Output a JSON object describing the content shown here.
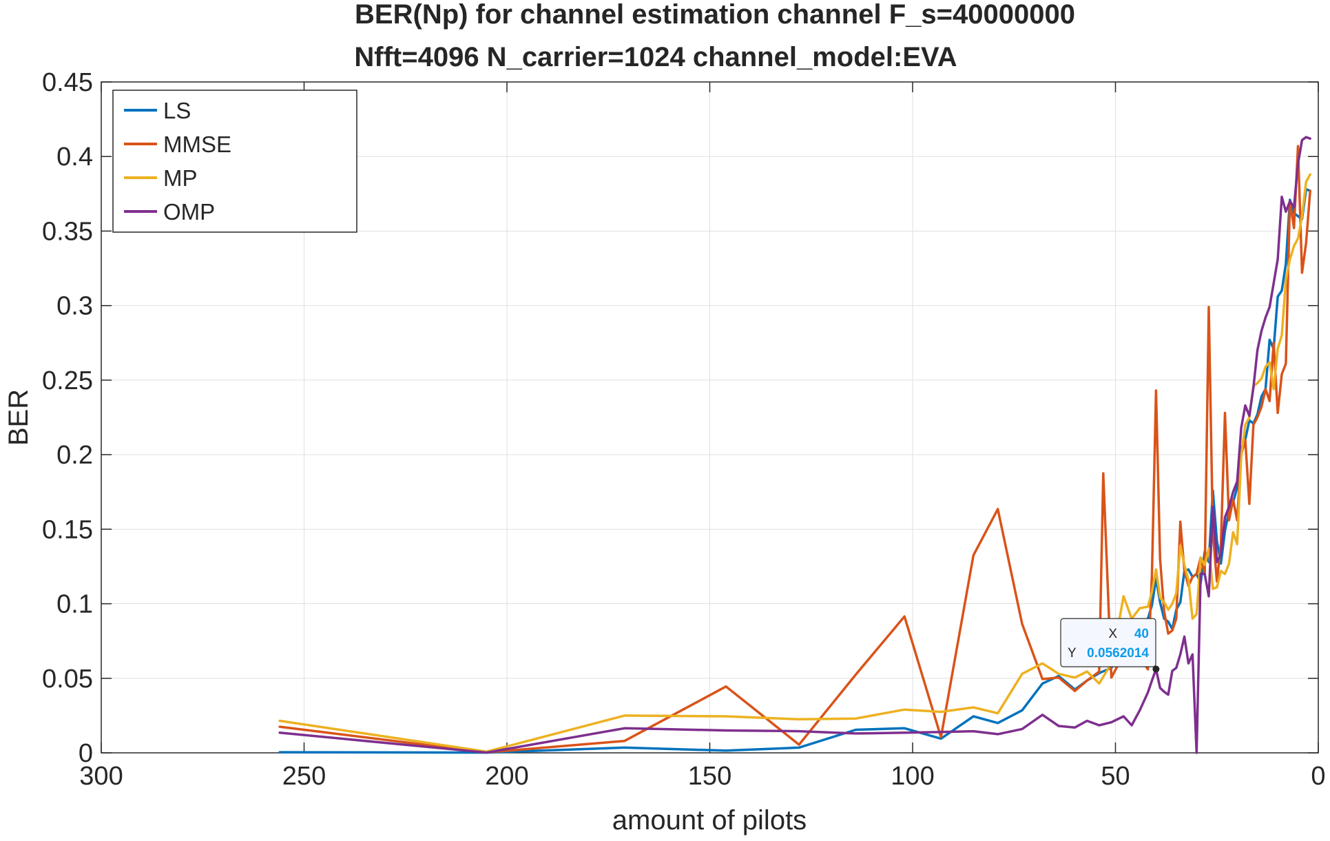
{
  "chart_data": {
    "type": "line",
    "title": "BER(Np) for channel estimation channel F_s=40000000",
    "subtitle": "Nfft=4096 N_carrier=1024 channel_model:EVA",
    "xlabel": "amount of pilots",
    "ylabel": "BER",
    "xlim": [
      300,
      0
    ],
    "ylim": [
      0,
      0.45
    ],
    "x_reversed": true,
    "grid": true,
    "legend_position": "top-left",
    "x_ticks": [
      "300",
      "250",
      "200",
      "150",
      "100",
      "50",
      "0"
    ],
    "y_ticks": [
      "0",
      "0.05",
      "0.1",
      "0.15",
      "0.2",
      "0.25",
      "0.3",
      "0.35",
      "0.4",
      "0.45"
    ],
    "series": [
      {
        "name": "LS",
        "color": "#0072BD",
        "points": [
          [
            256,
            0.0004
          ],
          [
            205,
            0.0002
          ],
          [
            171,
            0.0035
          ],
          [
            146,
            0.0015
          ],
          [
            128,
            0.0035
          ],
          [
            114,
            0.0155
          ],
          [
            102,
            0.0165
          ],
          [
            93,
            0.0095
          ],
          [
            85,
            0.0245
          ],
          [
            79,
            0.02
          ],
          [
            73,
            0.0285
          ],
          [
            68,
            0.0465
          ],
          [
            64,
            0.0515
          ],
          [
            60,
            0.0425
          ],
          [
            57,
            0.0485
          ],
          [
            54,
            0.0535
          ],
          [
            51,
            0.057
          ],
          [
            48,
            0.068
          ],
          [
            46,
            0.076
          ],
          [
            44,
            0.083
          ],
          [
            42,
            0.09
          ],
          [
            41,
            0.099
          ],
          [
            40,
            0.117
          ],
          [
            39,
            0.101
          ],
          [
            38,
            0.09
          ],
          [
            37,
            0.088
          ],
          [
            36,
            0.083
          ],
          [
            35,
            0.096
          ],
          [
            34,
            0.101
          ],
          [
            33,
            0.122
          ],
          [
            32,
            0.123
          ],
          [
            31,
            0.118
          ],
          [
            30,
            0.12
          ],
          [
            29,
            0.114
          ],
          [
            28,
            0.135
          ],
          [
            27,
            0.128
          ],
          [
            26,
            0.176
          ],
          [
            25,
            0.142
          ],
          [
            24,
            0.127
          ],
          [
            23,
            0.149
          ],
          [
            22,
            0.162
          ],
          [
            21,
            0.168
          ],
          [
            20,
            0.178
          ],
          [
            19,
            0.204
          ],
          [
            18,
            0.21
          ],
          [
            17,
            0.223
          ],
          [
            16,
            0.221
          ],
          [
            15,
            0.227
          ],
          [
            14,
            0.239
          ],
          [
            13,
            0.244
          ],
          [
            12,
            0.277
          ],
          [
            11,
            0.271
          ],
          [
            10,
            0.306
          ],
          [
            9,
            0.31
          ],
          [
            8,
            0.328
          ],
          [
            7,
            0.371
          ],
          [
            6,
            0.362
          ],
          [
            5,
            0.36
          ],
          [
            4,
            0.358
          ],
          [
            3,
            0.378
          ],
          [
            2,
            0.377
          ]
        ]
      },
      {
        "name": "MMSE",
        "color": "#D95319",
        "points": [
          [
            256,
            0.0175
          ],
          [
            205,
            0.0003
          ],
          [
            171,
            0.008
          ],
          [
            146,
            0.0445
          ],
          [
            128,
            0.0055
          ],
          [
            114,
            0.0525
          ],
          [
            102,
            0.0915
          ],
          [
            93,
            0.0105
          ],
          [
            85,
            0.1325
          ],
          [
            79,
            0.1635
          ],
          [
            73,
            0.0865
          ],
          [
            68,
            0.0495
          ],
          [
            64,
            0.0505
          ],
          [
            60,
            0.0415
          ],
          [
            57,
            0.0485
          ],
          [
            54,
            0.0545
          ],
          [
            53,
            0.1875
          ],
          [
            51,
            0.0505
          ],
          [
            48,
            0.066
          ],
          [
            46,
            0.07
          ],
          [
            44,
            0.064
          ],
          [
            42,
            0.056
          ],
          [
            41,
            0.12
          ],
          [
            40,
            0.243
          ],
          [
            39,
            0.13
          ],
          [
            38,
            0.095
          ],
          [
            37,
            0.08
          ],
          [
            36,
            0.082
          ],
          [
            35,
            0.09
          ],
          [
            34,
            0.155
          ],
          [
            33,
            0.122
          ],
          [
            32,
            0.112
          ],
          [
            31,
            0.118
          ],
          [
            30,
            0.12
          ],
          [
            29,
            0.131
          ],
          [
            28,
            0.12
          ],
          [
            27,
            0.299
          ],
          [
            26,
            0.148
          ],
          [
            25,
            0.115
          ],
          [
            24,
            0.14
          ],
          [
            23,
            0.228
          ],
          [
            22,
            0.156
          ],
          [
            21,
            0.17
          ],
          [
            20,
            0.156
          ],
          [
            19,
            0.2
          ],
          [
            18,
            0.21
          ],
          [
            17,
            0.167
          ],
          [
            16,
            0.22
          ],
          [
            15,
            0.225
          ],
          [
            14,
            0.232
          ],
          [
            13,
            0.244
          ],
          [
            12,
            0.236
          ],
          [
            11,
            0.275
          ],
          [
            10,
            0.228
          ],
          [
            9,
            0.254
          ],
          [
            8,
            0.261
          ],
          [
            7,
            0.37
          ],
          [
            6,
            0.352
          ],
          [
            5,
            0.407
          ],
          [
            4,
            0.322
          ],
          [
            3,
            0.342
          ],
          [
            2,
            0.377
          ]
        ]
      },
      {
        "name": "MP",
        "color": "#EDB120",
        "points": [
          [
            256,
            0.0215
          ],
          [
            205,
            0.0008
          ],
          [
            171,
            0.025
          ],
          [
            146,
            0.0245
          ],
          [
            128,
            0.0225
          ],
          [
            114,
            0.023
          ],
          [
            102,
            0.029
          ],
          [
            93,
            0.0275
          ],
          [
            85,
            0.0305
          ],
          [
            79,
            0.0265
          ],
          [
            73,
            0.053
          ],
          [
            68,
            0.06
          ],
          [
            64,
            0.053
          ],
          [
            60,
            0.0505
          ],
          [
            57,
            0.0545
          ],
          [
            54,
            0.0465
          ],
          [
            51,
            0.06
          ],
          [
            48,
            0.105
          ],
          [
            46,
            0.09
          ],
          [
            44,
            0.097
          ],
          [
            42,
            0.098
          ],
          [
            41,
            0.108
          ],
          [
            40,
            0.123
          ],
          [
            39,
            0.104
          ],
          [
            38,
            0.101
          ],
          [
            37,
            0.096
          ],
          [
            36,
            0.1
          ],
          [
            35,
            0.107
          ],
          [
            34,
            0.139
          ],
          [
            33,
            0.126
          ],
          [
            32,
            0.116
          ],
          [
            31,
            0.09
          ],
          [
            30,
            0.093
          ],
          [
            29,
            0.131
          ],
          [
            28,
            0.126
          ],
          [
            27,
            0.137
          ],
          [
            26,
            0.11
          ],
          [
            25,
            0.111
          ],
          [
            24,
            0.122
          ],
          [
            23,
            0.12
          ],
          [
            22,
            0.127
          ],
          [
            21,
            0.148
          ],
          [
            20,
            0.14
          ],
          [
            19,
            0.199
          ],
          [
            18,
            0.22
          ],
          [
            17,
            0.225
          ],
          [
            16,
            0.246
          ],
          [
            15,
            0.248
          ],
          [
            14,
            0.251
          ],
          [
            13,
            0.259
          ],
          [
            12,
            0.262
          ],
          [
            11,
            0.244
          ],
          [
            10,
            0.271
          ],
          [
            9,
            0.28
          ],
          [
            8,
            0.317
          ],
          [
            7,
            0.331
          ],
          [
            6,
            0.34
          ],
          [
            5,
            0.345
          ],
          [
            4,
            0.36
          ],
          [
            3,
            0.383
          ],
          [
            2,
            0.388
          ]
        ]
      },
      {
        "name": "OMP",
        "color": "#7E2F8E",
        "points": [
          [
            256,
            0.0135
          ],
          [
            205,
            0.0002
          ],
          [
            171,
            0.0165
          ],
          [
            146,
            0.015
          ],
          [
            128,
            0.0145
          ],
          [
            114,
            0.013
          ],
          [
            102,
            0.0135
          ],
          [
            93,
            0.014
          ],
          [
            85,
            0.0145
          ],
          [
            79,
            0.0125
          ],
          [
            73,
            0.016
          ],
          [
            68,
            0.0255
          ],
          [
            64,
            0.018
          ],
          [
            60,
            0.017
          ],
          [
            57,
            0.0215
          ],
          [
            54,
            0.0185
          ],
          [
            51,
            0.0205
          ],
          [
            48,
            0.0245
          ],
          [
            46,
            0.0185
          ],
          [
            44,
            0.0285
          ],
          [
            42,
            0.0405
          ],
          [
            41,
            0.0485
          ],
          [
            40,
            0.0562014
          ],
          [
            39,
            0.0435
          ],
          [
            38,
            0.041
          ],
          [
            37,
            0.039
          ],
          [
            36,
            0.055
          ],
          [
            35,
            0.057
          ],
          [
            34,
            0.066
          ],
          [
            33,
            0.078
          ],
          [
            32,
            0.06
          ],
          [
            31,
            0.066
          ],
          [
            30,
            0.0
          ],
          [
            29,
            0.12
          ],
          [
            28,
            0.12
          ],
          [
            27,
            0.105
          ],
          [
            26,
            0.165
          ],
          [
            25,
            0.128
          ],
          [
            24,
            0.133
          ],
          [
            23,
            0.158
          ],
          [
            22,
            0.165
          ],
          [
            21,
            0.175
          ],
          [
            20,
            0.182
          ],
          [
            19,
            0.218
          ],
          [
            18,
            0.233
          ],
          [
            17,
            0.226
          ],
          [
            16,
            0.245
          ],
          [
            15,
            0.27
          ],
          [
            14,
            0.283
          ],
          [
            13,
            0.292
          ],
          [
            12,
            0.299
          ],
          [
            11,
            0.315
          ],
          [
            10,
            0.331
          ],
          [
            9,
            0.373
          ],
          [
            8,
            0.363
          ],
          [
            7,
            0.37
          ],
          [
            6,
            0.366
          ],
          [
            5,
            0.395
          ],
          [
            4,
            0.411
          ],
          [
            3,
            0.413
          ],
          [
            2,
            0.412
          ]
        ]
      }
    ],
    "datatip": {
      "x_label": "X",
      "x_value": "40",
      "y_label": "Y",
      "y_value": "0.0562014",
      "x": 40,
      "y": 0.0562014
    }
  }
}
